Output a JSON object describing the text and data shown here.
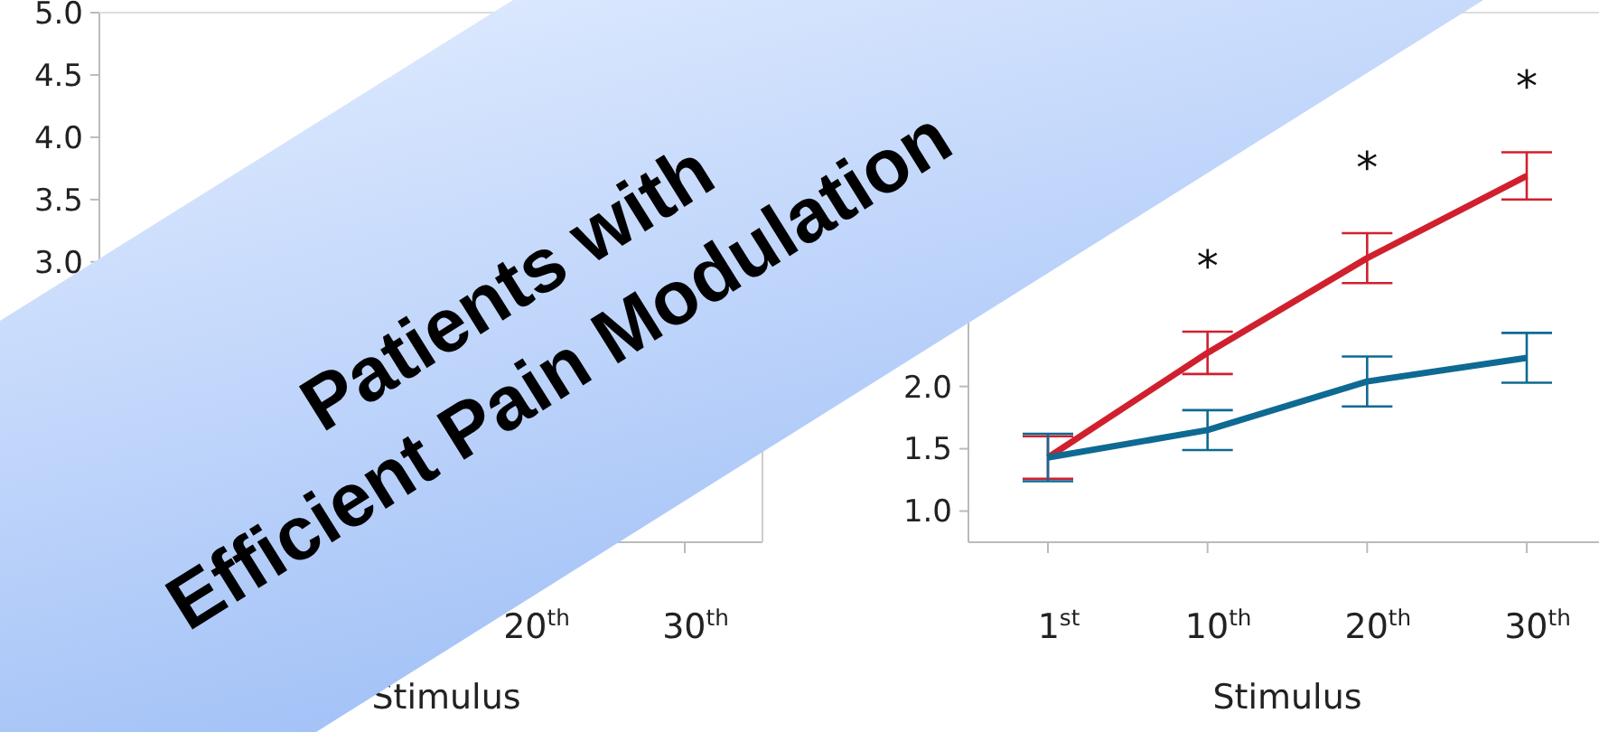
{
  "chart_data": [
    {
      "type": "line",
      "xlabel": "Stimulus",
      "categories": [
        null,
        null,
        "20$^{th}$",
        "30$^{th}$"
      ],
      "series": [
        {
          "color": "#d0202e",
          "values": [
            null,
            null,
            null,
            null
          ]
        },
        {
          "color": "#0e6a92",
          "values": [
            null,
            null,
            null,
            null
          ]
        }
      ],
      "ylim": [
        0.75,
        5.0
      ],
      "yticks": [
        {
          "value": 3,
          "label": "3.0"
        },
        3.5,
        {
          "value": 4,
          "label": "4.0"
        },
        4.5,
        {
          "value": 5,
          "label": "5.0"
        }
      ],
      "grid": false,
      "marker": "none",
      "line_style": "solid",
      "annotations": [
        "Patients with",
        "Efficient Pain Modulation"
      ]
    },
    {
      "type": "line",
      "xlabel": "Stimulus",
      "categories": [
        "1$^{st}$",
        "10$^{th}$",
        "20$^{th}$",
        "30$^{th}$"
      ],
      "series": [
        {
          "color": "#d0202e",
          "values": [
            1.43,
            2.27,
            3.03,
            3.69
          ],
          "errors": [
            0.17,
            0.17,
            0.2,
            0.19
          ]
        },
        {
          "color": "#0e6a92",
          "values": [
            1.43,
            1.65,
            2.04,
            2.23
          ],
          "errors": [
            0.19,
            0.16,
            0.2,
            0.2
          ]
        }
      ],
      "ylim": [
        0.75,
        5.0
      ],
      "yticks": [
        {
          "value": 1,
          "label": "1.0"
        },
        1.5,
        {
          "value": 2,
          "label": "2.0"
        }
      ],
      "grid": false,
      "marker": "none",
      "line_style": "solid",
      "annotations": [
        "*",
        "*",
        "*"
      ]
    }
  ]
}
